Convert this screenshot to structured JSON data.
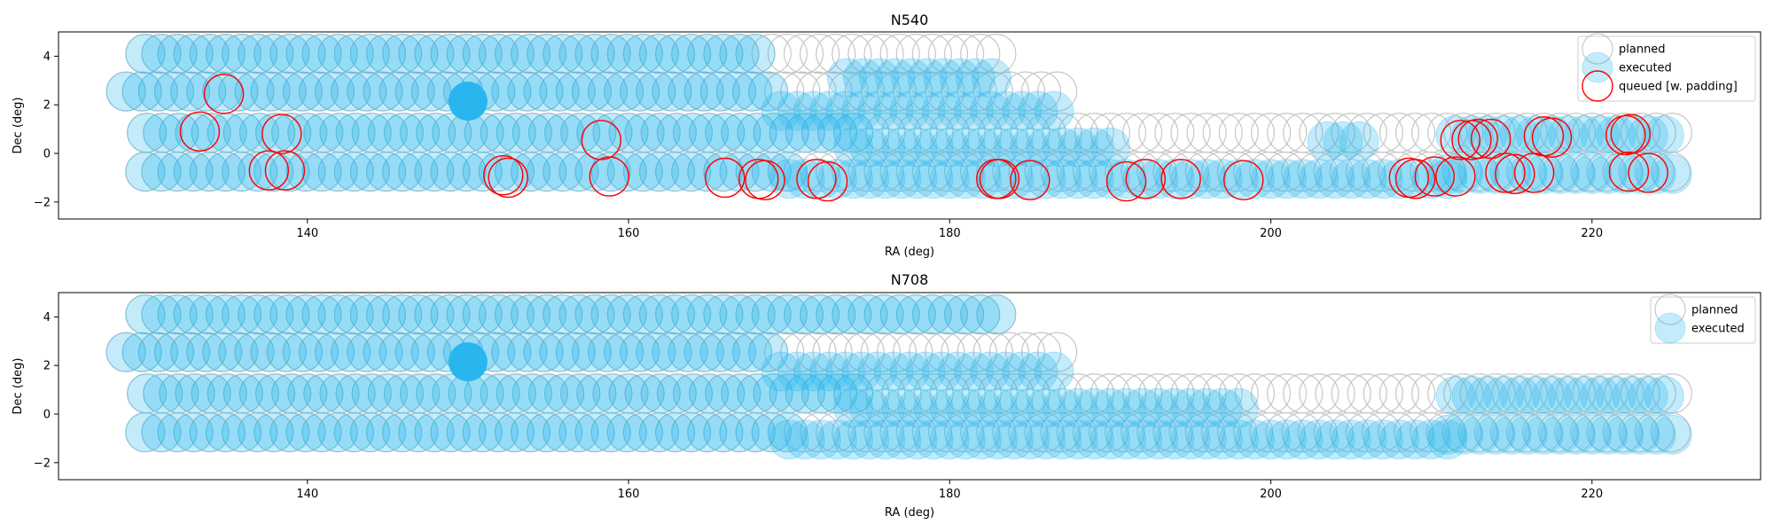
{
  "chart_data": [
    {
      "type": "scatter",
      "title": "N540",
      "xlabel": "RA (deg)",
      "ylabel": "Dec (deg)",
      "xlim": [
        124.5,
        230.5
      ],
      "ylim": [
        -2.7,
        5.0
      ],
      "xticks": [
        140,
        160,
        180,
        200,
        220
      ],
      "yticks": [
        -2,
        0,
        2,
        4
      ],
      "legend_position": "top-right",
      "grid": false,
      "colors": {
        "planned": "#c8c8c8",
        "executed": "#29b6ee",
        "queued": "#ff0000"
      },
      "series": [
        {
          "name": "planned",
          "rows": [
            {
              "dec": 4.1,
              "ra_start": 129.9,
              "ra_end": 183.3,
              "step": 1.0
            },
            {
              "dec": 2.55,
              "ra_start": 128.7,
              "ra_end": 187.1,
              "step": 1.0
            },
            {
              "dec": 0.85,
              "ra_start": 130.0,
              "ra_end": 225.0,
              "step": 1.0
            },
            {
              "dec": -0.75,
              "ra_start": 129.9,
              "ra_end": 225.7,
              "step": 1.0
            }
          ]
        },
        {
          "name": "executed",
          "rows": [
            {
              "dec": 4.1,
              "ra_start": 129.9,
              "ra_end": 168.5,
              "step": 1.0
            },
            {
              "dec": 3.1,
              "ra_start": 173.6,
              "ra_end": 183.3,
              "step": 1.0
            },
            {
              "dec": 2.55,
              "ra_start": 128.7,
              "ra_end": 169.5,
              "step": 1.0
            },
            {
              "dec": 1.75,
              "ra_start": 169.5,
              "ra_end": 187.1,
              "step": 1.0
            },
            {
              "dec": 0.85,
              "ra_start": 130.0,
              "ra_end": 174.0,
              "step": 1.0
            },
            {
              "dec": 0.25,
              "ra_start": 174.0,
              "ra_end": 190.5,
              "step": 1.0
            },
            {
              "dec": 0.5,
              "ra_start": 203.5,
              "ra_end": 205.5,
              "step": 1.0
            },
            {
              "dec": 0.75,
              "ra_start": 211.5,
              "ra_end": 225.0,
              "step": 1.0
            },
            {
              "dec": -0.75,
              "ra_start": 129.9,
              "ra_end": 170.0,
              "step": 1.0
            },
            {
              "dec": -1.05,
              "ra_start": 170.0,
              "ra_end": 211.0,
              "step": 1.0
            },
            {
              "dec": -0.85,
              "ra_start": 211.0,
              "ra_end": 225.7,
              "step": 1.0
            }
          ],
          "highlight": [
            150.0,
            2.15
          ]
        },
        {
          "name": "queued [w. padding]",
          "points": [
            [
              134.8,
              2.45
            ],
            [
              133.3,
              0.9
            ],
            [
              138.4,
              0.8
            ],
            [
              137.6,
              -0.7
            ],
            [
              138.6,
              -0.7
            ],
            [
              152.2,
              -0.9
            ],
            [
              152.5,
              -1.0
            ],
            [
              158.3,
              0.55
            ],
            [
              158.8,
              -0.95
            ],
            [
              166.0,
              -1.0
            ],
            [
              168.1,
              -1.05
            ],
            [
              168.5,
              -1.1
            ],
            [
              171.7,
              -1.05
            ],
            [
              172.4,
              -1.15
            ],
            [
              182.9,
              -1.05
            ],
            [
              183.1,
              -1.05
            ],
            [
              185.0,
              -1.1
            ],
            [
              191.0,
              -1.15
            ],
            [
              192.2,
              -1.05
            ],
            [
              194.4,
              -1.05
            ],
            [
              198.3,
              -1.1
            ],
            [
              208.6,
              -1.0
            ],
            [
              209.0,
              -1.05
            ],
            [
              210.2,
              -0.95
            ],
            [
              211.5,
              -0.95
            ],
            [
              211.8,
              0.55
            ],
            [
              212.5,
              0.55
            ],
            [
              212.9,
              0.6
            ],
            [
              213.7,
              0.6
            ],
            [
              214.6,
              -0.8
            ],
            [
              215.2,
              -0.85
            ],
            [
              216.4,
              -0.8
            ],
            [
              217.0,
              0.7
            ],
            [
              217.5,
              0.65
            ],
            [
              222.1,
              0.75
            ],
            [
              222.4,
              0.8
            ],
            [
              222.3,
              -0.75
            ],
            [
              223.5,
              -0.8
            ]
          ]
        }
      ]
    },
    {
      "type": "scatter",
      "title": "N708",
      "xlabel": "RA (deg)",
      "ylabel": "Dec (deg)",
      "xlim": [
        124.5,
        230.5
      ],
      "ylim": [
        -2.7,
        5.0
      ],
      "xticks": [
        140,
        160,
        180,
        200,
        220
      ],
      "yticks": [
        -2,
        0,
        2,
        4
      ],
      "legend_position": "top-right",
      "grid": false,
      "colors": {
        "planned": "#c8c8c8",
        "executed": "#29b6ee"
      },
      "series": [
        {
          "name": "planned",
          "rows": [
            {
              "dec": 4.1,
              "ra_start": 129.9,
              "ra_end": 183.3,
              "step": 1.0
            },
            {
              "dec": 2.55,
              "ra_start": 128.7,
              "ra_end": 187.1,
              "step": 1.0
            },
            {
              "dec": 0.85,
              "ra_start": 130.0,
              "ra_end": 225.0,
              "step": 1.0
            },
            {
              "dec": -0.75,
              "ra_start": 129.9,
              "ra_end": 225.7,
              "step": 1.0
            }
          ]
        },
        {
          "name": "executed",
          "rows": [
            {
              "dec": 4.1,
              "ra_start": 129.9,
              "ra_end": 183.3,
              "step": 1.0
            },
            {
              "dec": 2.55,
              "ra_start": 128.7,
              "ra_end": 169.5,
              "step": 1.0
            },
            {
              "dec": 1.75,
              "ra_start": 169.5,
              "ra_end": 187.1,
              "step": 1.0
            },
            {
              "dec": 0.85,
              "ra_start": 130.0,
              "ra_end": 174.0,
              "step": 1.0
            },
            {
              "dec": 0.25,
              "ra_start": 174.0,
              "ra_end": 198.5,
              "step": 1.0
            },
            {
              "dec": 0.75,
              "ra_start": 211.5,
              "ra_end": 225.0,
              "step": 1.0
            },
            {
              "dec": -0.75,
              "ra_start": 129.9,
              "ra_end": 170.0,
              "step": 1.0
            },
            {
              "dec": -1.05,
              "ra_start": 170.0,
              "ra_end": 211.0,
              "step": 1.0
            },
            {
              "dec": -0.85,
              "ra_start": 211.0,
              "ra_end": 225.7,
              "step": 1.0
            }
          ],
          "highlight": [
            150.0,
            2.15
          ]
        }
      ]
    }
  ]
}
